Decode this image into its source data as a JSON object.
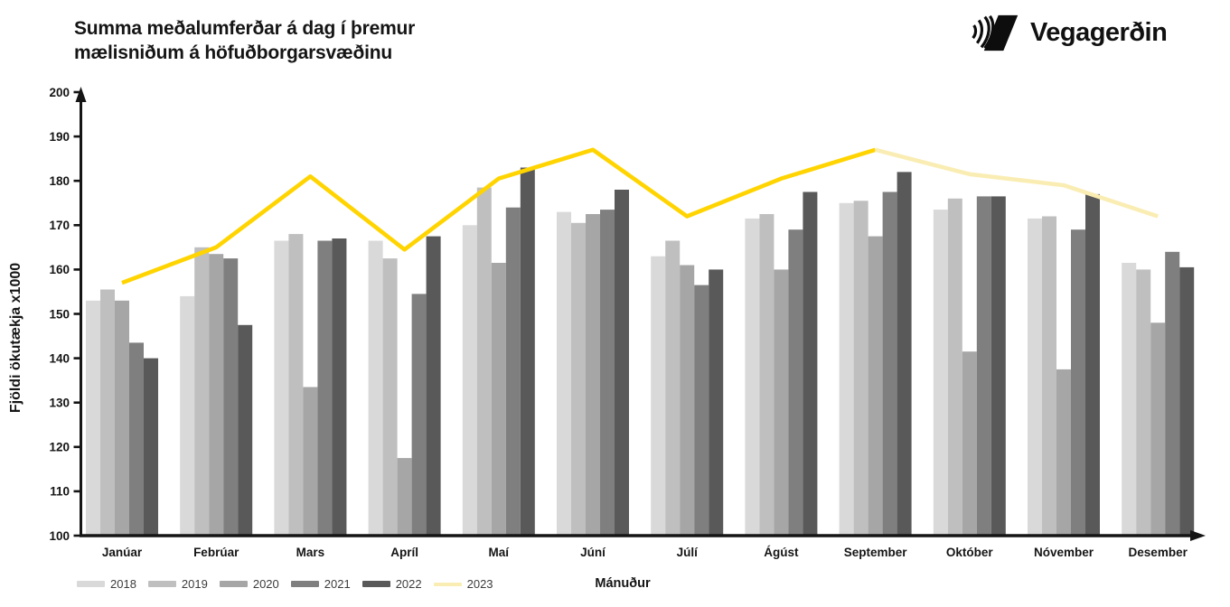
{
  "header": {
    "title_line1": "Summa meðalumferðar á dag í þremur",
    "title_line2": "mælisniðum á höfuðborgarsvæðinu",
    "logo_text": "Vegagerðin"
  },
  "chart_data": {
    "type": "bar",
    "subtype": "grouped-bars-with-line-overlay",
    "title": "Summa meðalumferðar á dag í þremur mælisniðum á höfuðborgarsvæðinu",
    "xlabel": "Mánuður",
    "ylabel": "Fjöldi ökutækja x1000",
    "ylim": [
      100,
      200
    ],
    "ytick_step": 10,
    "grid": false,
    "legend_position": "bottom-left",
    "categories": [
      "Janúar",
      "Febrúar",
      "Mars",
      "Apríl",
      "Maí",
      "Júní",
      "Júlí",
      "Ágúst",
      "September",
      "Október",
      "Nóvember",
      "Desember"
    ],
    "series": [
      {
        "name": "2018",
        "type": "bar",
        "color": "#D9D9D9",
        "values": [
          153,
          154,
          166.5,
          166.5,
          170,
          173,
          163,
          171.5,
          175,
          173.5,
          171.5,
          161.5
        ]
      },
      {
        "name": "2019",
        "type": "bar",
        "color": "#BFBFBF",
        "values": [
          155.5,
          165,
          168,
          162.5,
          178.5,
          170.5,
          166.5,
          172.5,
          175.5,
          176,
          172,
          160
        ]
      },
      {
        "name": "2020",
        "type": "bar",
        "color": "#A6A6A6",
        "values": [
          153,
          163.5,
          133.5,
          117.5,
          161.5,
          172.5,
          161,
          160,
          167.5,
          141.5,
          137.5,
          148
        ]
      },
      {
        "name": "2021",
        "type": "bar",
        "color": "#7F7F7F",
        "values": [
          143.5,
          162.5,
          166.5,
          154.5,
          174,
          173.5,
          156.5,
          169,
          177.5,
          176.5,
          169,
          164
        ]
      },
      {
        "name": "2022",
        "type": "bar",
        "color": "#595959",
        "values": [
          140,
          147.5,
          167,
          167.5,
          183,
          178,
          160,
          177.5,
          182,
          176.5,
          177,
          160.5
        ]
      },
      {
        "name": "2023",
        "type": "line",
        "color": "#FFD400",
        "color_faded": "#FAEDB3",
        "faded_from_index": 8,
        "values": [
          157,
          165,
          181,
          164.5,
          180.5,
          187,
          172,
          180.5,
          187,
          181.5,
          179,
          172
        ]
      }
    ]
  }
}
